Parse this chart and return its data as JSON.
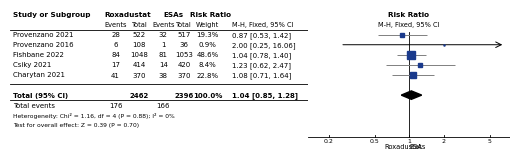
{
  "studies": [
    "Provenzano 2021",
    "Provenzano 2016",
    "Fishbane 2022",
    "Csiky 2021",
    "Charytan 2021"
  ],
  "rox_events": [
    28,
    6,
    84,
    17,
    41
  ],
  "rox_total": [
    522,
    108,
    1048,
    414,
    370
  ],
  "esa_events": [
    32,
    1,
    81,
    14,
    38
  ],
  "esa_total": [
    517,
    36,
    1053,
    420,
    370
  ],
  "weights": [
    "19.3%",
    "0.9%",
    "48.6%",
    "8.4%",
    "22.8%"
  ],
  "rr": [
    0.87,
    2.0,
    1.04,
    1.23,
    1.08
  ],
  "ci_low": [
    0.53,
    0.25,
    0.78,
    0.62,
    0.71
  ],
  "ci_high": [
    1.42,
    16.06,
    1.4,
    2.47,
    1.64
  ],
  "rr_text": [
    "0.87 [0.53, 1.42]",
    "2.00 [0.25, 16.06]",
    "1.04 [0.78, 1.40]",
    "1.23 [0.62, 2.47]",
    "1.08 [0.71, 1.64]"
  ],
  "total_rox": 2462,
  "total_esa": 2396,
  "total_rr": 1.04,
  "total_ci_low": 0.85,
  "total_ci_high": 1.28,
  "total_rr_text": "1.04 [0.85, 1.28]",
  "total_events_rox": 176,
  "total_events_esa": 166,
  "heterogeneity_text": "Heterogeneity: Chi² = 1.16, df = 4 (P = 0.88); I² = 0%",
  "overall_effect_text": "Test for overall effect: Z = 0.39 (P = 0.70)",
  "x_axis_ticks": [
    0.2,
    0.5,
    1,
    2,
    5
  ],
  "x_axis_labels": [
    "0.2",
    "0.5",
    "1",
    "2",
    "5"
  ],
  "x_label_left": "Roxadustat",
  "x_label_right": "ESAs",
  "bg_color": "#ffffff",
  "box_color": "#1a3a8c",
  "weights_num": [
    19.3,
    0.9,
    48.6,
    8.4,
    22.8
  ],
  "text_split": 0.595,
  "plot_split": 0.595,
  "total_rows": 13
}
